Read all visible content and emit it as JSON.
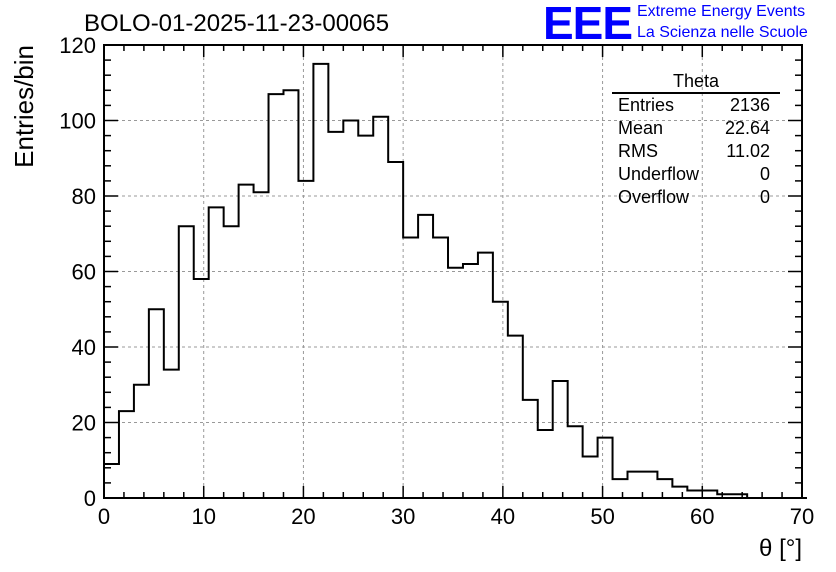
{
  "header": {
    "run_title": "BOLO-01-2025-11-23-00065",
    "logo_text": "EEE",
    "logo_line1": "Extreme Energy Events",
    "logo_line2": "La Scienza nelle Scuole"
  },
  "stats_box": {
    "title": "Theta",
    "rows": [
      {
        "label": "Entries",
        "value": "2136"
      },
      {
        "label": "Mean",
        "value": "22.64"
      },
      {
        "label": "RMS",
        "value": "11.02"
      },
      {
        "label": "Underflow",
        "value": "0"
      },
      {
        "label": "Overflow",
        "value": "0"
      }
    ]
  },
  "colors": {
    "logo": "#0000ff",
    "histogram": "#000000",
    "grid": "#999999"
  },
  "chart_data": {
    "type": "bar",
    "style": "step-histogram",
    "title": "BOLO-01-2025-11-23-00065",
    "xlabel": "θ [°]",
    "ylabel": "Entries/bin",
    "xlim": [
      0,
      70
    ],
    "ylim": [
      0,
      120
    ],
    "x_ticks": [
      0,
      10,
      20,
      30,
      40,
      50,
      60,
      70
    ],
    "y_ticks": [
      0,
      20,
      40,
      60,
      80,
      100,
      120
    ],
    "grid": true,
    "bin_width": 1.5,
    "bin_edges_start": 0,
    "values": [
      9,
      23,
      30,
      50,
      34,
      72,
      58,
      77,
      72,
      83,
      81,
      107,
      108,
      84,
      115,
      97,
      100,
      96,
      101,
      89,
      69,
      75,
      69,
      61,
      62,
      65,
      52,
      43,
      26,
      18,
      31,
      19,
      11,
      16,
      5,
      7,
      7,
      5,
      3,
      2,
      2,
      1,
      1,
      0,
      0,
      0,
      0
    ]
  }
}
